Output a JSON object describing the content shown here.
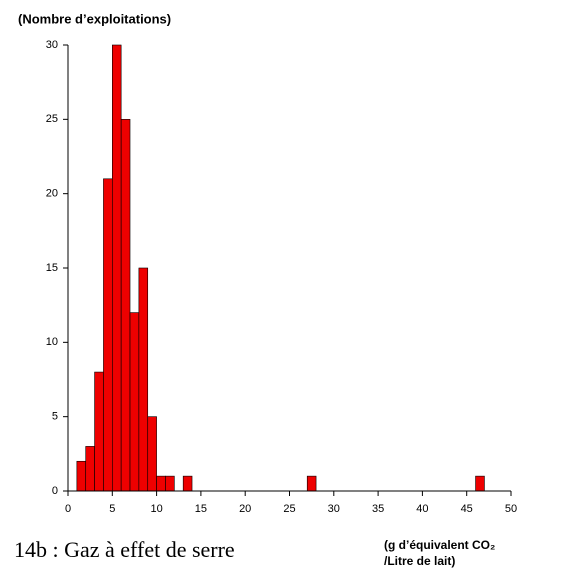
{
  "chart_data": {
    "type": "histogram",
    "ylabel": "(Nombre d’exploitations)",
    "xlabel": [
      "(g d’équivalent CO₂",
      "/Litre de lait)"
    ],
    "caption": "14b : Gaz à effet de serre",
    "bins": [
      1,
      2,
      3,
      4,
      5,
      6,
      7,
      8,
      9,
      10,
      11,
      12,
      13,
      14,
      15,
      16,
      17,
      18,
      19,
      20,
      21,
      22,
      23,
      24,
      25,
      26,
      27,
      28,
      29,
      30,
      31,
      32,
      33,
      34,
      35,
      36,
      37,
      38,
      39,
      40,
      41,
      42,
      43,
      44,
      45,
      46,
      47
    ],
    "values": [
      2,
      3,
      8,
      21,
      30,
      25,
      12,
      15,
      5,
      1,
      1,
      0,
      1,
      0,
      0,
      0,
      0,
      0,
      0,
      0,
      0,
      0,
      0,
      0,
      0,
      0,
      1,
      0,
      0,
      0,
      0,
      0,
      0,
      0,
      0,
      0,
      0,
      0,
      0,
      0,
      0,
      0,
      0,
      0,
      0,
      1
    ],
    "color": "#ee0000",
    "xlim": [
      0,
      50
    ],
    "xticks": [
      0,
      5,
      10,
      15,
      20,
      25,
      30,
      35,
      40,
      45,
      50
    ],
    "ylim": [
      0,
      30
    ],
    "yticks": [
      0,
      5,
      10,
      15,
      20,
      25,
      30
    ]
  }
}
